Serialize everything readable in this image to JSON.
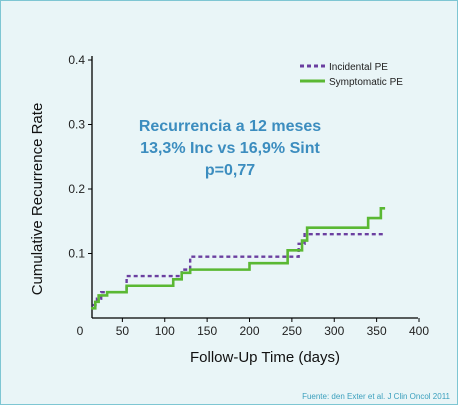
{
  "chart_data": {
    "type": "line",
    "step": true,
    "xlabel": "Follow-Up Time (days)",
    "ylabel": "Cumulative Recurrence Rate",
    "xlim": [
      0,
      400
    ],
    "ylim": [
      0,
      0.4
    ],
    "x_ticks": [
      "0",
      "50",
      "100",
      "150",
      "200",
      "250",
      "300",
      "350",
      "400"
    ],
    "y_ticks": [
      "0.1",
      "0.2",
      "0.3",
      "0.4"
    ],
    "grid": false,
    "legend_position": "top-right",
    "series": [
      {
        "name": "Incidental PE",
        "color": "#6b3fa0",
        "dash": true,
        "x": [
          15,
          20,
          25,
          55,
          112,
          120,
          130,
          150,
          250,
          258,
          265,
          285,
          360
        ],
        "y": [
          0.02,
          0.03,
          0.04,
          0.065,
          0.065,
          0.075,
          0.095,
          0.095,
          0.095,
          0.115,
          0.13,
          0.13,
          0.13
        ]
      },
      {
        "name": "Symptomatic PE",
        "color": "#5ab833",
        "dash": false,
        "x": [
          13,
          18,
          22,
          32,
          55,
          110,
          120,
          130,
          200,
          245,
          262,
          268,
          340,
          355,
          360
        ],
        "y": [
          0.015,
          0.025,
          0.035,
          0.04,
          0.05,
          0.06,
          0.07,
          0.075,
          0.085,
          0.105,
          0.12,
          0.14,
          0.155,
          0.17,
          0.17
        ]
      }
    ],
    "annotations": [
      "Recurrencia a 12 meses",
      "13,3% Inc vs 16,9% Sint",
      "p=0,77"
    ]
  },
  "source_note": "Fuente: den Exter et al. J Clin Oncol 2011"
}
